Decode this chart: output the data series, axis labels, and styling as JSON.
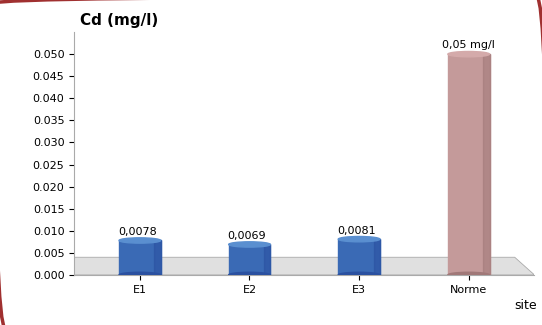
{
  "categories": [
    "E1",
    "E2",
    "E3",
    "Norme"
  ],
  "values": [
    0.0078,
    0.0069,
    0.0081,
    0.05
  ],
  "value_labels": [
    "0,0078",
    "0,0069",
    "0,0081",
    "0,05 mg/l"
  ],
  "cylinder_main": [
    "#3a6ab5",
    "#3a6ab5",
    "#3a6ab5",
    "#c49a9a"
  ],
  "cylinder_top": [
    "#5a8fd0",
    "#5a8fd0",
    "#5a8fd0",
    "#d4aaaa"
  ],
  "cylinder_dark": [
    "#2a50a0",
    "#2a50a0",
    "#2a50a0",
    "#a07878"
  ],
  "ylabel": "Cd (mg/l)",
  "xlabel": "site",
  "ylim": [
    0,
    0.055
  ],
  "yticks": [
    0,
    0.005,
    0.01,
    0.015,
    0.02,
    0.025,
    0.03,
    0.035,
    0.04,
    0.045,
    0.05
  ],
  "background_color": "#ffffff",
  "border_color": "#a03030",
  "wall_color": "#f0f0f0",
  "floor_color": "#e0e0e0",
  "title_fontsize": 11,
  "label_fontsize": 8,
  "tick_fontsize": 8
}
